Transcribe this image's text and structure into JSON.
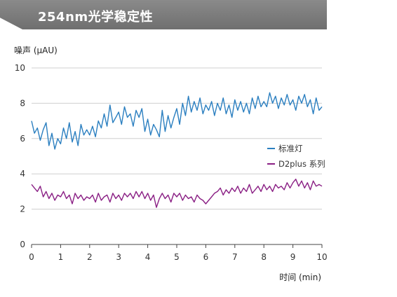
{
  "header": {
    "title": "254nm光学稳定性"
  },
  "chart_data": {
    "type": "line",
    "title": "",
    "xlabel": "时间 (min)",
    "ylabel": "噪声 (μAU)",
    "xlim": [
      0,
      10
    ],
    "ylim": [
      0,
      10
    ],
    "xticks": [
      "0",
      "1",
      "2",
      "3",
      "4",
      "5",
      "6",
      "7",
      "8",
      "9",
      "10"
    ],
    "yticks": [
      "0",
      "2",
      "4",
      "6",
      "8",
      "10"
    ],
    "grid": "horizontal",
    "legend_position": "right",
    "series": [
      {
        "name": "标准灯",
        "color": "#2b7fc0",
        "x": [
          0.0,
          0.1,
          0.2,
          0.3,
          0.4,
          0.5,
          0.6,
          0.7,
          0.8,
          0.9,
          1.0,
          1.1,
          1.2,
          1.3,
          1.4,
          1.5,
          1.6,
          1.7,
          1.8,
          1.9,
          2.0,
          2.1,
          2.2,
          2.3,
          2.4,
          2.5,
          2.6,
          2.7,
          2.8,
          2.9,
          3.0,
          3.1,
          3.2,
          3.3,
          3.4,
          3.5,
          3.6,
          3.7,
          3.8,
          3.9,
          4.0,
          4.1,
          4.2,
          4.3,
          4.4,
          4.5,
          4.6,
          4.7,
          4.8,
          4.9,
          5.0,
          5.1,
          5.2,
          5.3,
          5.4,
          5.5,
          5.6,
          5.7,
          5.8,
          5.9,
          6.0,
          6.1,
          6.2,
          6.3,
          6.4,
          6.5,
          6.6,
          6.7,
          6.8,
          6.9,
          7.0,
          7.1,
          7.2,
          7.3,
          7.4,
          7.5,
          7.6,
          7.7,
          7.8,
          7.9,
          8.0,
          8.1,
          8.2,
          8.3,
          8.4,
          8.5,
          8.6,
          8.7,
          8.8,
          8.9,
          9.0,
          9.1,
          9.2,
          9.3,
          9.4,
          9.5,
          9.6,
          9.7,
          9.8,
          9.9,
          10.0
        ],
        "values": [
          7.0,
          6.3,
          6.6,
          5.9,
          6.5,
          6.9,
          5.6,
          6.3,
          5.4,
          6.0,
          5.7,
          6.6,
          6.0,
          6.9,
          5.8,
          6.4,
          5.6,
          6.8,
          6.2,
          6.5,
          6.2,
          6.7,
          6.1,
          7.0,
          6.6,
          7.4,
          6.7,
          7.9,
          6.9,
          7.2,
          7.5,
          6.8,
          7.8,
          7.2,
          7.4,
          6.7,
          7.6,
          7.2,
          7.7,
          6.4,
          7.1,
          6.2,
          6.8,
          6.5,
          6.1,
          7.6,
          6.4,
          7.3,
          6.6,
          7.2,
          7.7,
          6.8,
          8.0,
          7.3,
          8.4,
          7.5,
          8.1,
          7.6,
          8.3,
          7.4,
          7.9,
          7.6,
          8.1,
          7.3,
          8.0,
          7.6,
          8.3,
          7.4,
          7.9,
          7.2,
          8.2,
          7.6,
          8.1,
          7.5,
          8.0,
          7.4,
          8.3,
          7.7,
          8.4,
          7.8,
          8.1,
          7.8,
          8.6,
          8.0,
          8.4,
          7.7,
          8.3,
          7.9,
          8.5,
          7.9,
          8.2,
          7.6,
          8.4,
          8.0,
          8.5,
          7.8,
          8.2,
          7.4,
          8.3,
          7.6,
          7.8
        ]
      },
      {
        "name": "D2plus 系列",
        "color": "#8a1f84",
        "x": [
          0.0,
          0.1,
          0.2,
          0.3,
          0.4,
          0.5,
          0.6,
          0.7,
          0.8,
          0.9,
          1.0,
          1.1,
          1.2,
          1.3,
          1.4,
          1.5,
          1.6,
          1.7,
          1.8,
          1.9,
          2.0,
          2.1,
          2.2,
          2.3,
          2.4,
          2.5,
          2.6,
          2.7,
          2.8,
          2.9,
          3.0,
          3.1,
          3.2,
          3.3,
          3.4,
          3.5,
          3.6,
          3.7,
          3.8,
          3.9,
          4.0,
          4.1,
          4.2,
          4.3,
          4.4,
          4.5,
          4.6,
          4.7,
          4.8,
          4.9,
          5.0,
          5.1,
          5.2,
          5.3,
          5.4,
          5.5,
          5.6,
          5.7,
          5.8,
          5.9,
          6.0,
          6.1,
          6.2,
          6.3,
          6.4,
          6.5,
          6.6,
          6.7,
          6.8,
          6.9,
          7.0,
          7.1,
          7.2,
          7.3,
          7.4,
          7.5,
          7.6,
          7.7,
          7.8,
          7.9,
          8.0,
          8.1,
          8.2,
          8.3,
          8.4,
          8.5,
          8.6,
          8.7,
          8.8,
          8.9,
          9.0,
          9.1,
          9.2,
          9.3,
          9.4,
          9.5,
          9.6,
          9.7,
          9.8,
          9.9,
          10.0
        ],
        "values": [
          3.4,
          3.2,
          3.0,
          3.3,
          2.7,
          3.0,
          2.6,
          2.9,
          2.5,
          2.8,
          2.7,
          3.0,
          2.6,
          2.8,
          2.3,
          2.9,
          2.6,
          2.8,
          2.5,
          2.7,
          2.6,
          2.8,
          2.4,
          2.9,
          2.5,
          2.7,
          2.8,
          2.4,
          2.9,
          2.6,
          2.8,
          2.5,
          2.9,
          2.7,
          2.9,
          2.6,
          3.0,
          2.7,
          3.0,
          2.6,
          2.9,
          2.5,
          2.8,
          2.1,
          2.6,
          2.9,
          2.6,
          2.8,
          2.4,
          2.9,
          2.7,
          2.9,
          2.5,
          2.8,
          2.6,
          2.7,
          2.4,
          2.8,
          2.6,
          2.5,
          2.3,
          2.5,
          2.7,
          2.9,
          3.0,
          3.2,
          2.8,
          3.1,
          2.9,
          3.2,
          3.0,
          3.3,
          2.9,
          3.2,
          3.0,
          3.4,
          2.9,
          3.1,
          3.3,
          3.0,
          3.4,
          3.1,
          3.3,
          3.0,
          3.4,
          3.2,
          3.3,
          3.1,
          3.5,
          3.2,
          3.5,
          3.7,
          3.3,
          3.6,
          3.2,
          3.5,
          3.1,
          3.6,
          3.3,
          3.4,
          3.3
        ]
      }
    ]
  }
}
